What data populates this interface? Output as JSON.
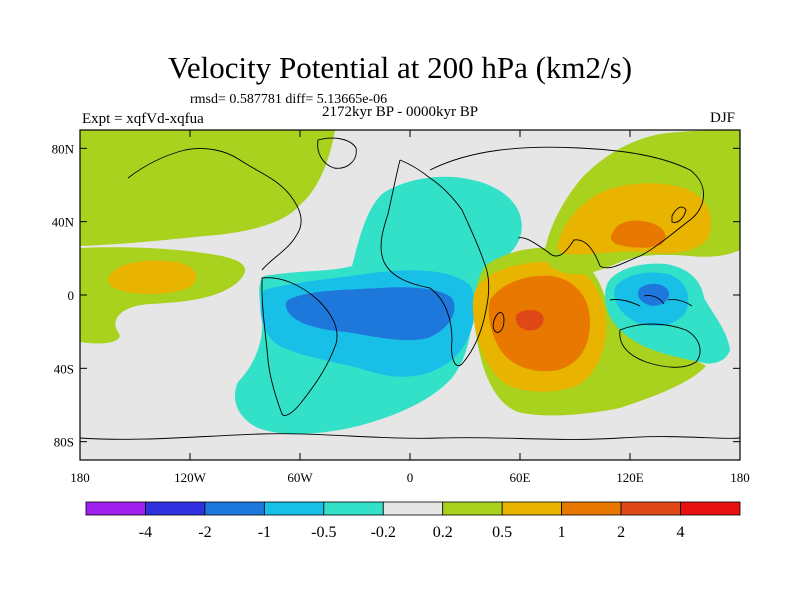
{
  "chart_data": {
    "type": "heatmap",
    "title": "Velocity Potential at 200 hPa (km2/s)",
    "stats_text": "rmsd= 0.587781 diff= 5.13665e-06",
    "period_text": "2172kyr BP - 0000kyr BP",
    "expt_text": "Expt = xqfVd-xqfua",
    "season": "DJF",
    "x_ticks": [
      "180",
      "120W",
      "60W",
      "0",
      "60E",
      "120E",
      "180"
    ],
    "y_ticks": [
      "80N",
      "40N",
      "0",
      "40S",
      "80S"
    ],
    "xlim": [
      -180,
      180
    ],
    "ylim": [
      -90,
      90
    ],
    "colorbar": {
      "labels": [
        "-4",
        "-2",
        "-1",
        "-0.5",
        "-0.2",
        "0.2",
        "0.5",
        "1",
        "2",
        "4"
      ],
      "levels": [
        -4,
        -2,
        -1,
        -0.5,
        -0.2,
        0.2,
        0.5,
        1,
        2,
        4
      ],
      "colors": [
        "#a020f0",
        "#3030e0",
        "#1e78dc",
        "#18c0e8",
        "#33e0c8",
        "#e6e6e6",
        "#a8d21e",
        "#e8b400",
        "#e87800",
        "#e04818",
        "#e81010"
      ]
    },
    "features": [
      {
        "name": "north-pacific-positive",
        "lon": -158,
        "lat": 52,
        "value": 0.3
      },
      {
        "name": "central-pacific-positive",
        "lon": -140,
        "lat": 10,
        "value": 0.6
      },
      {
        "name": "atlantic-negative",
        "lon": -25,
        "lat": -5,
        "value": -1.2
      },
      {
        "name": "east-africa-positive",
        "lon": 60,
        "lat": -12,
        "value": 2.2
      },
      {
        "name": "east-asia-positive",
        "lon": 124,
        "lat": 36,
        "value": 1.4
      },
      {
        "name": "maritime-negative",
        "lon": 130,
        "lat": -3,
        "value": -0.8
      }
    ]
  }
}
